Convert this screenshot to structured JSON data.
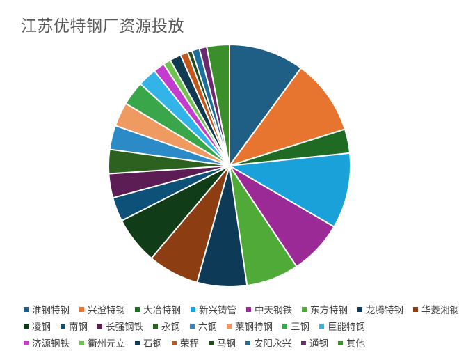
{
  "title": "江苏优特钢厂资源投放",
  "chart_data": {
    "type": "pie",
    "title": "江苏优特钢厂资源投放",
    "legend_position": "bottom",
    "slices": [
      {
        "label": "淮钢特钢",
        "value": 10.0,
        "color": "#1f5f85"
      },
      {
        "label": "兴澄特钢",
        "value": 10.0,
        "color": "#e8752f"
      },
      {
        "label": "大冶特钢",
        "value": 3.2,
        "color": "#1f6b24"
      },
      {
        "label": "新兴铸管",
        "value": 10.0,
        "color": "#1aa1d9"
      },
      {
        "label": "中天钢铁",
        "value": 7.2,
        "color": "#9c2a96"
      },
      {
        "label": "东方特钢",
        "value": 7.0,
        "color": "#4faa37"
      },
      {
        "label": "龙腾特钢",
        "value": 6.6,
        "color": "#0c3a57"
      },
      {
        "label": "华菱湘钢",
        "value": 6.8,
        "color": "#8c3e12"
      },
      {
        "label": "凌钢",
        "value": 6.3,
        "color": "#103c18"
      },
      {
        "label": "南钢",
        "value": 3.2,
        "color": "#0d5179"
      },
      {
        "label": "长强钢铁",
        "value": 3.2,
        "color": "#5c1d55"
      },
      {
        "label": "永钢",
        "value": 3.2,
        "color": "#2d6120"
      },
      {
        "label": "六钢",
        "value": 3.2,
        "color": "#2c8bc7"
      },
      {
        "label": "莱钢特钢",
        "value": 3.2,
        "color": "#ef9a61"
      },
      {
        "label": "三钢",
        "value": 3.2,
        "color": "#3aa64a"
      },
      {
        "label": "巨能特钢",
        "value": 2.5,
        "color": "#33b4e8"
      },
      {
        "label": "济源钢铁",
        "value": 1.5,
        "color": "#c43ccd"
      },
      {
        "label": "衢州元立",
        "value": 1.0,
        "color": "#6fc24f"
      },
      {
        "label": "石钢",
        "value": 1.5,
        "color": "#0f3a52"
      },
      {
        "label": "荣程",
        "value": 1.0,
        "color": "#c3561b"
      },
      {
        "label": "马钢",
        "value": 0.6,
        "color": "#234b1c"
      },
      {
        "label": "安阳永兴",
        "value": 1.0,
        "color": "#1a6f9c"
      },
      {
        "label": "通钢",
        "value": 1.0,
        "color": "#6a2a6f"
      },
      {
        "label": "其他",
        "value": 3.0,
        "color": "#3a8f2a"
      }
    ]
  }
}
